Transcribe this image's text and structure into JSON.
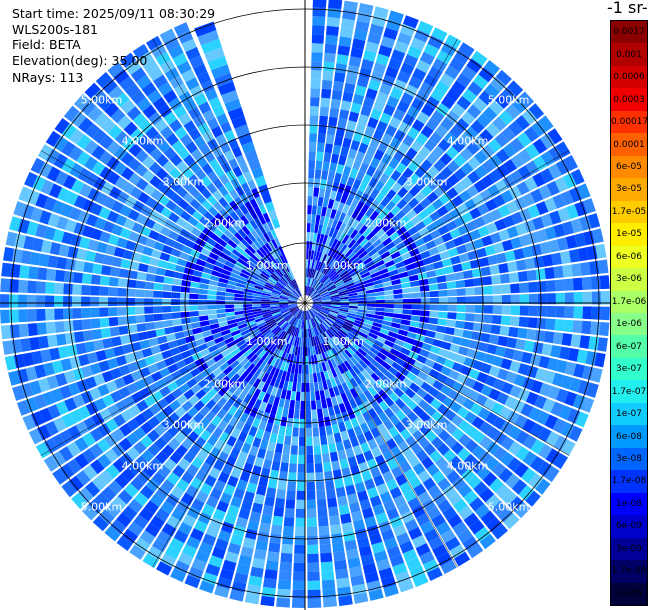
{
  "header": {
    "start_time": "Start time: 2025/09/11 08:30:29",
    "instrument": "WLS200s-181",
    "field": "Field: BETA",
    "elevation": "Elevation(deg): 35.00",
    "nrays": "NRays: 113"
  },
  "colorbar": {
    "title": "-1 sr-",
    "levels": [
      {
        "label": "0.0017",
        "color": "#8b0000"
      },
      {
        "label": "0.001",
        "color": "#b00000"
      },
      {
        "label": "0.0006",
        "color": "#d40000"
      },
      {
        "label": "0.0003",
        "color": "#f00000"
      },
      {
        "label": "0.00017",
        "color": "#ff3000"
      },
      {
        "label": "0.0001",
        "color": "#ff6000"
      },
      {
        "label": "6e-05",
        "color": "#ff8a00"
      },
      {
        "label": "3e-05",
        "color": "#ffaa00"
      },
      {
        "label": "1.7e-05",
        "color": "#ffcc00"
      },
      {
        "label": "1e-05",
        "color": "#ffee00"
      },
      {
        "label": "6e-06",
        "color": "#eeff22"
      },
      {
        "label": "3e-06",
        "color": "#ccff44"
      },
      {
        "label": "1.7e-06",
        "color": "#aaff66"
      },
      {
        "label": "1e-06",
        "color": "#88ff88"
      },
      {
        "label": "6e-07",
        "color": "#55ffaa"
      },
      {
        "label": "3e-07",
        "color": "#33ffcc"
      },
      {
        "label": "1.7e-07",
        "color": "#22eeee"
      },
      {
        "label": "1e-07",
        "color": "#11ccff"
      },
      {
        "label": "6e-08",
        "color": "#0099ff"
      },
      {
        "label": "3e-08",
        "color": "#0066ff"
      },
      {
        "label": "1.7e-08",
        "color": "#0033ff"
      },
      {
        "label": "1e-08",
        "color": "#0000ff"
      },
      {
        "label": "6e-09",
        "color": "#0000cc"
      },
      {
        "label": "3e-09",
        "color": "#000099"
      },
      {
        "label": "1.7e-09",
        "color": "#000066"
      },
      {
        "label": "1e-09",
        "color": "#00003a"
      }
    ]
  },
  "range_labels": [
    "1.00km",
    "2.00km",
    "3.00km",
    "4.00km",
    "5.00km"
  ],
  "palette": {
    "dominant": [
      "#0a58ff",
      "#1c6cff",
      "#2f86ff",
      "#4aa4ff",
      "#1e90ff",
      "#0040ff",
      "#66c8ff",
      "#2bd2ff"
    ],
    "ring_color": "#000000",
    "label_color": "#ffffff"
  }
}
